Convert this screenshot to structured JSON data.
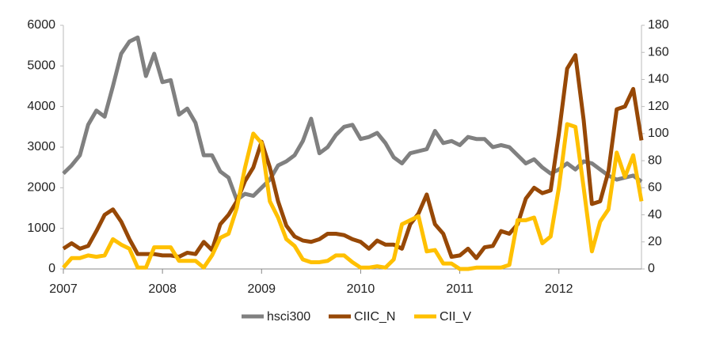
{
  "chart_data": {
    "type": "line",
    "categories": [
      "2007",
      null,
      null,
      null,
      null,
      null,
      null,
      null,
      null,
      null,
      null,
      null,
      "2008",
      null,
      null,
      null,
      null,
      null,
      null,
      null,
      null,
      null,
      null,
      null,
      "2009",
      null,
      null,
      null,
      null,
      null,
      null,
      null,
      null,
      null,
      null,
      null,
      "2010",
      null,
      null,
      null,
      null,
      null,
      null,
      null,
      null,
      null,
      null,
      null,
      "2011",
      null,
      null,
      null,
      null,
      null,
      null,
      null,
      null,
      null,
      null,
      null,
      "2012",
      null,
      null,
      null,
      null,
      null,
      null,
      null,
      null,
      null,
      null
    ],
    "series": [
      {
        "name": "hsci300",
        "color": "#808080",
        "values": [
          2350,
          2550,
          2800,
          3550,
          3900,
          3750,
          4500,
          5300,
          5600,
          5700,
          4750,
          5300,
          4600,
          4650,
          3800,
          3950,
          3600,
          2800,
          2800,
          2400,
          2250,
          1700,
          1850,
          1800,
          2000,
          2200,
          2550,
          2650,
          2800,
          3150,
          3700,
          2850,
          3000,
          3300,
          3500,
          3550,
          3200,
          3250,
          3350,
          3100,
          2750,
          2600,
          2850,
          2900,
          2950,
          3400,
          3100,
          3150,
          3050,
          3250,
          3200,
          3200,
          3000,
          3050,
          3000,
          2800,
          2600,
          2700,
          2500,
          2350,
          2450,
          2600,
          2450,
          2650,
          2600,
          2450,
          2300,
          2200,
          2250,
          2300,
          2150
        ]
      },
      {
        "name": "CIIC_N",
        "color": "#974806",
        "axis": "y2",
        "values": [
          15,
          19,
          15,
          17,
          28,
          40,
          44,
          35,
          22,
          11,
          11,
          11,
          10,
          10,
          9,
          12,
          11,
          20,
          14,
          33,
          40,
          50,
          65,
          75,
          94,
          75,
          50,
          32,
          24,
          21,
          20,
          22,
          26,
          26,
          25,
          22,
          20,
          15,
          21,
          18,
          18,
          15,
          33,
          41,
          55,
          33,
          26,
          9,
          10,
          15,
          8,
          16,
          17,
          28,
          26,
          33,
          52,
          60,
          56,
          58,
          100,
          148,
          158,
          110,
          48,
          50,
          72,
          118,
          120,
          133,
          95
        ]
      },
      {
        "name": "CII_V",
        "color": "#ffc000",
        "axis": "y2",
        "values": [
          1,
          8,
          8,
          10,
          9,
          10,
          22,
          18,
          15,
          1,
          1,
          16,
          16,
          16,
          6,
          6,
          6,
          1,
          10,
          23,
          26,
          45,
          75,
          100,
          93,
          50,
          38,
          22,
          17,
          7,
          5,
          5,
          6,
          10,
          10,
          5,
          1,
          1,
          2,
          1,
          7,
          33,
          36,
          39,
          13,
          14,
          4,
          4,
          0,
          0,
          1,
          1,
          1,
          1,
          3,
          36,
          36,
          38,
          19,
          24,
          60,
          107,
          105,
          60,
          13,
          35,
          44,
          86,
          68,
          84,
          50
        ]
      }
    ],
    "ylim": [
      0,
      6000
    ],
    "yticks": [
      0,
      1000,
      2000,
      3000,
      4000,
      5000,
      6000
    ],
    "y2lim": [
      0,
      180
    ],
    "y2ticks": [
      0,
      20,
      40,
      60,
      80,
      100,
      120,
      140,
      160,
      180
    ],
    "legend": "bottom"
  }
}
